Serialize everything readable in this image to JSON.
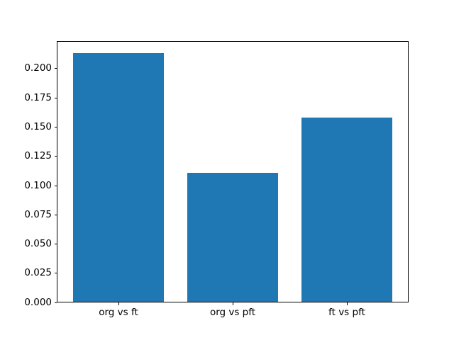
{
  "figure": {
    "background": "#ffffff",
    "text_color": "#000000",
    "spine_color": "#000000"
  },
  "chart_data": {
    "type": "bar",
    "title": "",
    "xlabel": "",
    "ylabel": "",
    "categories": [
      "org vs ft",
      "org vs pft",
      "ft vs pft"
    ],
    "values": [
      0.213,
      0.111,
      0.158
    ],
    "bar_color": "#1f77b4",
    "bar_width_fraction": 0.8,
    "ylim": [
      0,
      0.2237
    ],
    "yticks": [
      0.0,
      0.025,
      0.05,
      0.075,
      0.1,
      0.125,
      0.15,
      0.175,
      0.2
    ],
    "ytick_labels": [
      "0.000",
      "0.025",
      "0.050",
      "0.075",
      "0.100",
      "0.125",
      "0.150",
      "0.175",
      "0.200"
    ],
    "grid": false,
    "legend_position": "none"
  }
}
